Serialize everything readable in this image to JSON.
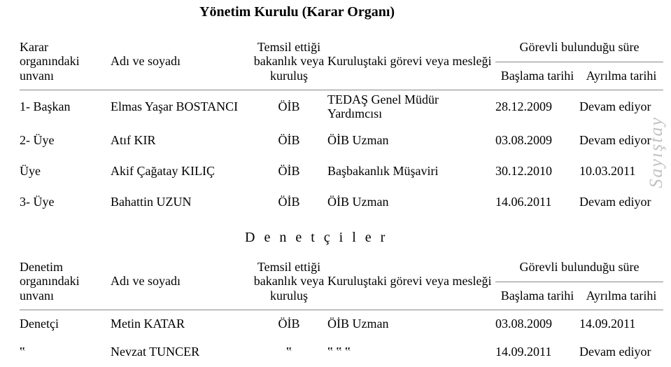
{
  "title": "Yönetim Kurulu (Karar Organı)",
  "watermark": "Sayıştay",
  "sectionLabel": "D e n e t ç i l e r",
  "board": {
    "headers": {
      "titleCol": "Karar organındaki unvanı",
      "nameCol": "Adı ve soyadı",
      "repCol": "Temsil ettiği bakanlık veya kuruluş",
      "roleCol": "Kuruluştaki görevi veya mesleği",
      "periodCol": "Görevli bulunduğu süre",
      "startCol": "Başlama tarihi",
      "endCol": "Ayrılma tarihi"
    },
    "rows": [
      {
        "title": "1- Başkan",
        "name": "Elmas Yaşar BOSTANCI",
        "rep": "ÖİB",
        "role": "TEDAŞ Genel Müdür Yardımcısı",
        "start": "28.12.2009",
        "end": "Devam ediyor"
      },
      {
        "title": "2- Üye",
        "name": "Atıf KIR",
        "rep": "ÖİB",
        "role": "ÖİB Uzman",
        "start": "03.08.2009",
        "end": "Devam ediyor"
      },
      {
        "title": "Üye",
        "name": "Akif Çağatay KILIÇ",
        "rep": "ÖİB",
        "role": "Başbakanlık Müşaviri",
        "start": "30.12.2010",
        "end": "10.03.2011"
      },
      {
        "title": "3- Üye",
        "name": "Bahattin UZUN",
        "rep": "ÖİB",
        "role": "ÖİB Uzman",
        "start": "14.06.2011",
        "end": "Devam ediyor"
      }
    ]
  },
  "audit": {
    "headers": {
      "titleCol": "Denetim organındaki unvanı",
      "nameCol": "Adı ve soyadı",
      "repCol": "Temsil ettiği bakanlık veya kuruluş",
      "roleCol": "Kuruluştaki görevi veya mesleği",
      "periodCol": "Görevli bulunduğu süre",
      "startCol": "Başlama tarihi",
      "endCol": "Ayrılma tarihi"
    },
    "rows": [
      {
        "title": "Denetçi",
        "name": "Metin KATAR",
        "rep": "ÖİB",
        "role": "ÖİB Uzman",
        "start": "03.08.2009",
        "end": "14.09.2011"
      },
      {
        "title": "‟",
        "name": "Nevzat TUNCER",
        "rep": "‟",
        "role": "‟   ‟     ‟",
        "start": "14.09.2011",
        "end": "Devam ediyor"
      }
    ]
  }
}
